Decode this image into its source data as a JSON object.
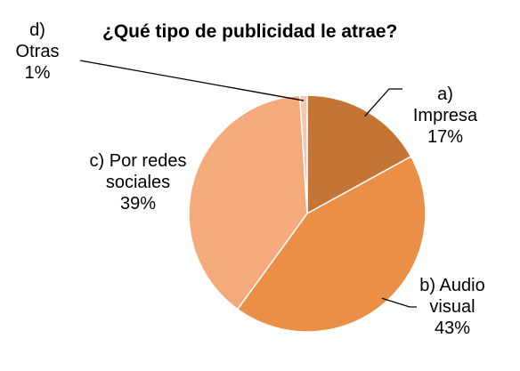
{
  "chart_data": {
    "type": "pie",
    "title": "¿Qué tipo de publicidad le atrae?",
    "categories": [
      "a) Impresa",
      "b) Audiovisual",
      "c) Por redes sociales",
      "d) Otras"
    ],
    "values": [
      17,
      43,
      39,
      1
    ],
    "value_labels": [
      "17%",
      "43%",
      "39%",
      "1%"
    ],
    "colors": [
      "#c47535",
      "#ea8f45",
      "#f5aa7c",
      "#f8c5b1"
    ]
  }
}
